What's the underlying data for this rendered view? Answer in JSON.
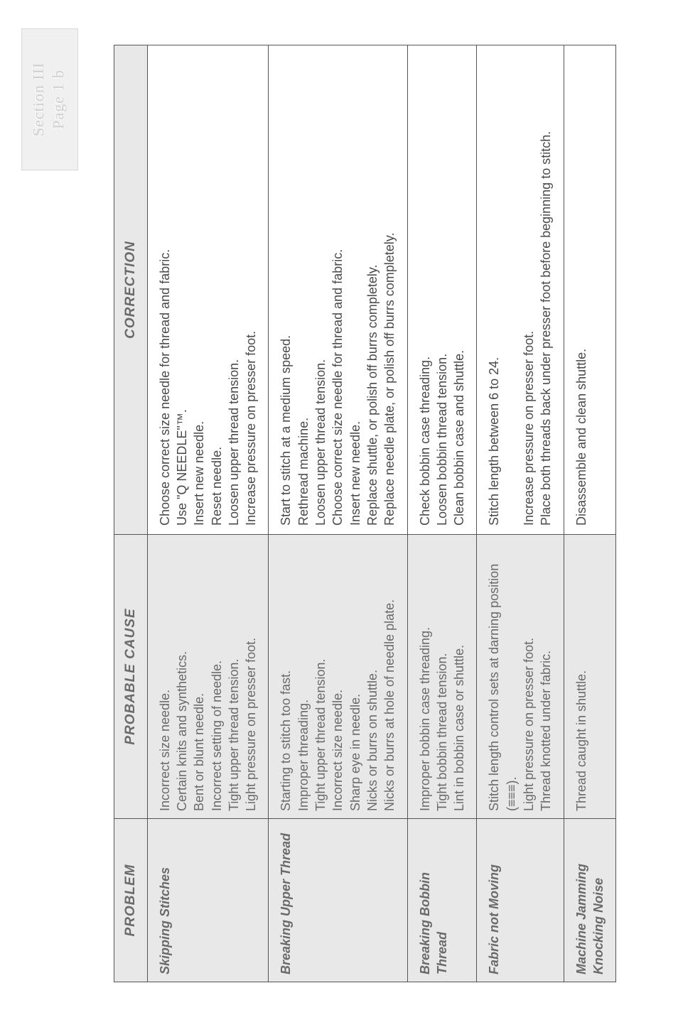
{
  "badge": {
    "line1": "Section III",
    "line2": "Page 1 b"
  },
  "headers": {
    "problem": "PROBLEM",
    "cause": "PROBABLE CAUSE",
    "correction": "CORRECTION"
  },
  "rows": [
    {
      "problem": "Skipping Stitches",
      "cause": [
        "Incorrect size needle.",
        "Certain knits and synthetics.",
        "Bent or blunt needle.",
        "Incorrect setting of needle.",
        "Tight upper thread tension.",
        "Light pressure on presser foot."
      ],
      "correction": [
        "Choose correct size needle for thread and fabric.",
        "Use \"Q NEEDLE\"™.",
        "Insert new needle.",
        "Reset needle.",
        "Loosen upper thread tension.",
        "Increase pressure on presser foot."
      ]
    },
    {
      "problem": "Breaking Upper Thread",
      "cause": [
        "Starting to stitch too fast.",
        "Improper threading.",
        "Tight upper thread tension.",
        "Incorrect size needle.",
        "Sharp eye in needle.",
        "Nicks or burrs on shuttle.",
        "Nicks or burrs at hole of needle plate."
      ],
      "correction": [
        "Start to stitch at a medium speed.",
        "Rethread machine.",
        "Loosen upper thread tension.",
        "Choose correct size needle for thread and fabric.",
        "Insert new needle.",
        "Replace shuttle, or polish off burrs completely.",
        "Replace needle plate, or polish off burrs completely."
      ]
    },
    {
      "problem": "Breaking Bobbin Thread",
      "cause": [
        "Improper bobbin case threading.",
        "Tight bobbin thread tension.",
        "Lint in bobbin case or shuttle."
      ],
      "correction": [
        "Check bobbin case threading.",
        "Loosen bobbin thread tension.",
        "Clean bobbin case and shuttle."
      ]
    },
    {
      "problem": "Fabric not Moving",
      "cause": [
        "Stitch length control sets at darning position (≡≡≡).",
        "Light pressure on presser foot.",
        "Thread knotted under fabric."
      ],
      "correction": [
        "Stitch length between 6 to 24.",
        "",
        "Increase pressure on presser foot.",
        "Place both threads back under presser foot before beginning to stitch."
      ]
    },
    {
      "problem": "Machine Jamming Knocking Noise",
      "cause": [
        "Thread caught in shuttle."
      ],
      "correction": [
        "Disassemble and clean shuttle."
      ]
    }
  ]
}
